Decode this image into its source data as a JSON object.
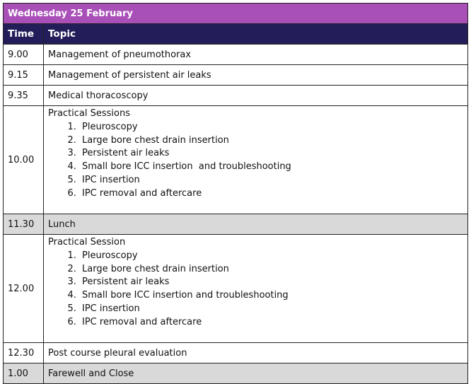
{
  "title": "Wednesday 25 February",
  "headers": {
    "time": "Time",
    "topic": "Topic"
  },
  "colors": {
    "title_bg": "#a94fb8",
    "header_bg": "#231e5a",
    "highlight_row": "#d9d9d9"
  },
  "rows": [
    {
      "time": "9.00",
      "topic": "Management of pneumothorax"
    },
    {
      "time": "9.15",
      "topic": "Management of persistent air leaks"
    },
    {
      "time": "9.35",
      "topic": "Medical thoracoscopy"
    },
    {
      "time": "10.00",
      "topic": "Practical Sessions",
      "items": [
        "Pleuroscopy",
        "Large bore chest drain insertion",
        "Persistent air leaks",
        "Small bore ICC insertion  and troubleshooting",
        "IPC insertion",
        "IPC removal and aftercare"
      ]
    },
    {
      "time": "11.30",
      "topic": "Lunch"
    },
    {
      "time": "12.00",
      "topic": "Practical Session",
      "items": [
        "Pleuroscopy",
        "Large bore chest drain insertion",
        "Persistent air leaks",
        "Small bore ICC insertion and troubleshooting",
        "IPC insertion",
        "IPC removal and aftercare"
      ]
    },
    {
      "time": "12.30",
      "topic": "Post course pleural evaluation"
    },
    {
      "time": "1.00",
      "topic": "Farewell and Close"
    }
  ]
}
